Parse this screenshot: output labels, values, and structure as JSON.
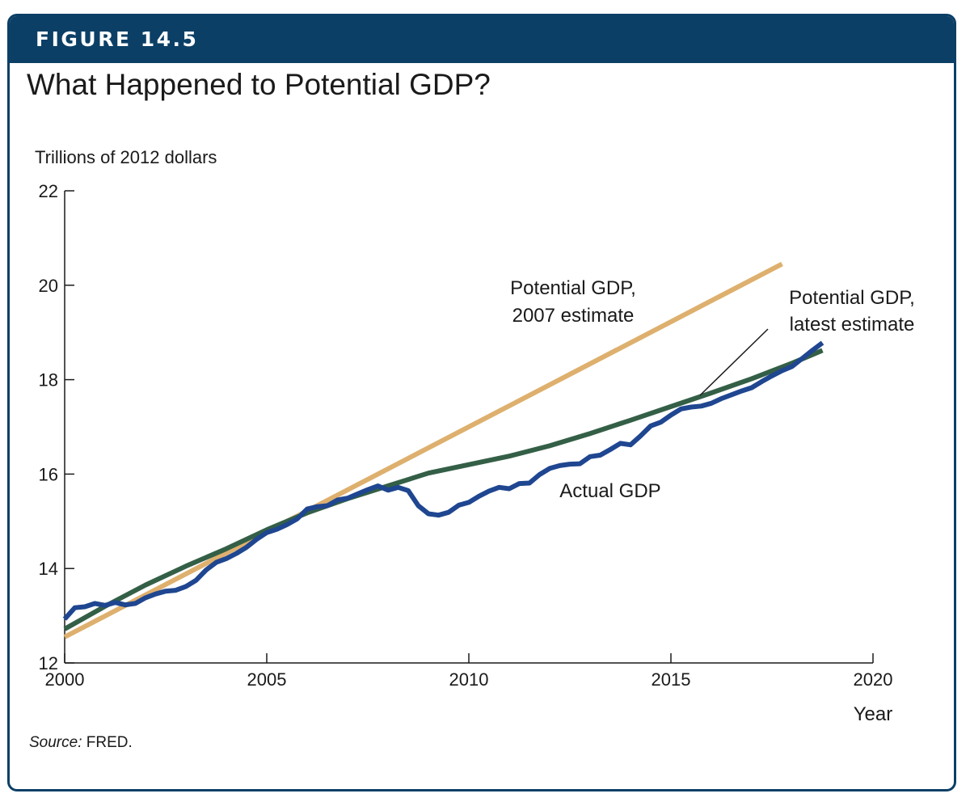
{
  "figure": {
    "label": "FIGURE 14.5",
    "title": "What Happened to Potential GDP?",
    "source_prefix": "Source:",
    "source_text": " FRED."
  },
  "colors": {
    "banner": "#0b3f66",
    "actual": "#1f4690",
    "potential_latest": "#345f47",
    "potential_2007": "#deb06e"
  },
  "chart_data": {
    "type": "line",
    "ylabel": "Trillions of 2012 dollars",
    "xlabel": "Year",
    "xlim": [
      2000,
      2020
    ],
    "ylim": [
      12,
      22
    ],
    "xticks": [
      2000,
      2005,
      2010,
      2015,
      2020
    ],
    "yticks": [
      12,
      14,
      16,
      18,
      20,
      22
    ],
    "annotations": [
      {
        "series": "potential_2007",
        "lines": [
          "Potential GDP,",
          "2007 estimate"
        ]
      },
      {
        "series": "potential_latest",
        "lines": [
          "Potential GDP,",
          "latest estimate"
        ]
      },
      {
        "series": "actual",
        "lines": [
          "Actual GDP"
        ]
      }
    ],
    "series": [
      {
        "id": "potential_2007",
        "x": [
          2000.0,
          2017.75
        ],
        "y": [
          12.55,
          20.45
        ]
      },
      {
        "id": "potential_latest",
        "x": [
          2000.0,
          2001.0,
          2002.0,
          2003.0,
          2004.0,
          2005.0,
          2006.0,
          2007.0,
          2008.0,
          2009.0,
          2010.0,
          2011.0,
          2012.0,
          2013.0,
          2014.0,
          2015.0,
          2016.0,
          2017.0,
          2018.0,
          2018.75
        ],
        "y": [
          12.72,
          13.2,
          13.65,
          14.05,
          14.42,
          14.82,
          15.18,
          15.48,
          15.75,
          16.02,
          16.2,
          16.38,
          16.6,
          16.86,
          17.14,
          17.43,
          17.72,
          18.02,
          18.35,
          18.62
        ]
      },
      {
        "id": "actual",
        "x": [
          2000.0,
          2000.25,
          2000.5,
          2000.75,
          2001.0,
          2001.25,
          2001.5,
          2001.75,
          2002.0,
          2002.25,
          2002.5,
          2002.75,
          2003.0,
          2003.25,
          2003.5,
          2003.75,
          2004.0,
          2004.25,
          2004.5,
          2004.75,
          2005.0,
          2005.25,
          2005.5,
          2005.75,
          2006.0,
          2006.25,
          2006.5,
          2006.75,
          2007.0,
          2007.25,
          2007.5,
          2007.75,
          2008.0,
          2008.25,
          2008.5,
          2008.75,
          2009.0,
          2009.25,
          2009.5,
          2009.75,
          2010.0,
          2010.25,
          2010.5,
          2010.75,
          2011.0,
          2011.25,
          2011.5,
          2011.75,
          2012.0,
          2012.25,
          2012.5,
          2012.75,
          2013.0,
          2013.25,
          2013.5,
          2013.75,
          2014.0,
          2014.25,
          2014.5,
          2014.75,
          2015.0,
          2015.25,
          2015.5,
          2015.75,
          2016.0,
          2016.25,
          2016.5,
          2016.75,
          2017.0,
          2017.25,
          2017.5,
          2017.75,
          2018.0,
          2018.25,
          2018.5,
          2018.75
        ],
        "y": [
          12.93,
          13.17,
          13.19,
          13.26,
          13.22,
          13.28,
          13.23,
          13.26,
          13.38,
          13.46,
          13.52,
          13.54,
          13.62,
          13.75,
          13.97,
          14.13,
          14.21,
          14.32,
          14.45,
          14.62,
          14.76,
          14.83,
          14.93,
          15.05,
          15.26,
          15.31,
          15.33,
          15.45,
          15.49,
          15.58,
          15.67,
          15.75,
          15.66,
          15.72,
          15.65,
          15.33,
          15.16,
          15.13,
          15.19,
          15.34,
          15.4,
          15.53,
          15.64,
          15.72,
          15.69,
          15.8,
          15.81,
          15.99,
          16.12,
          16.18,
          16.21,
          16.22,
          16.37,
          16.4,
          16.52,
          16.65,
          16.62,
          16.81,
          17.02,
          17.1,
          17.25,
          17.38,
          17.42,
          17.44,
          17.5,
          17.6,
          17.68,
          17.76,
          17.83,
          17.96,
          18.08,
          18.19,
          18.28,
          18.45,
          18.62,
          18.78
        ]
      }
    ]
  }
}
